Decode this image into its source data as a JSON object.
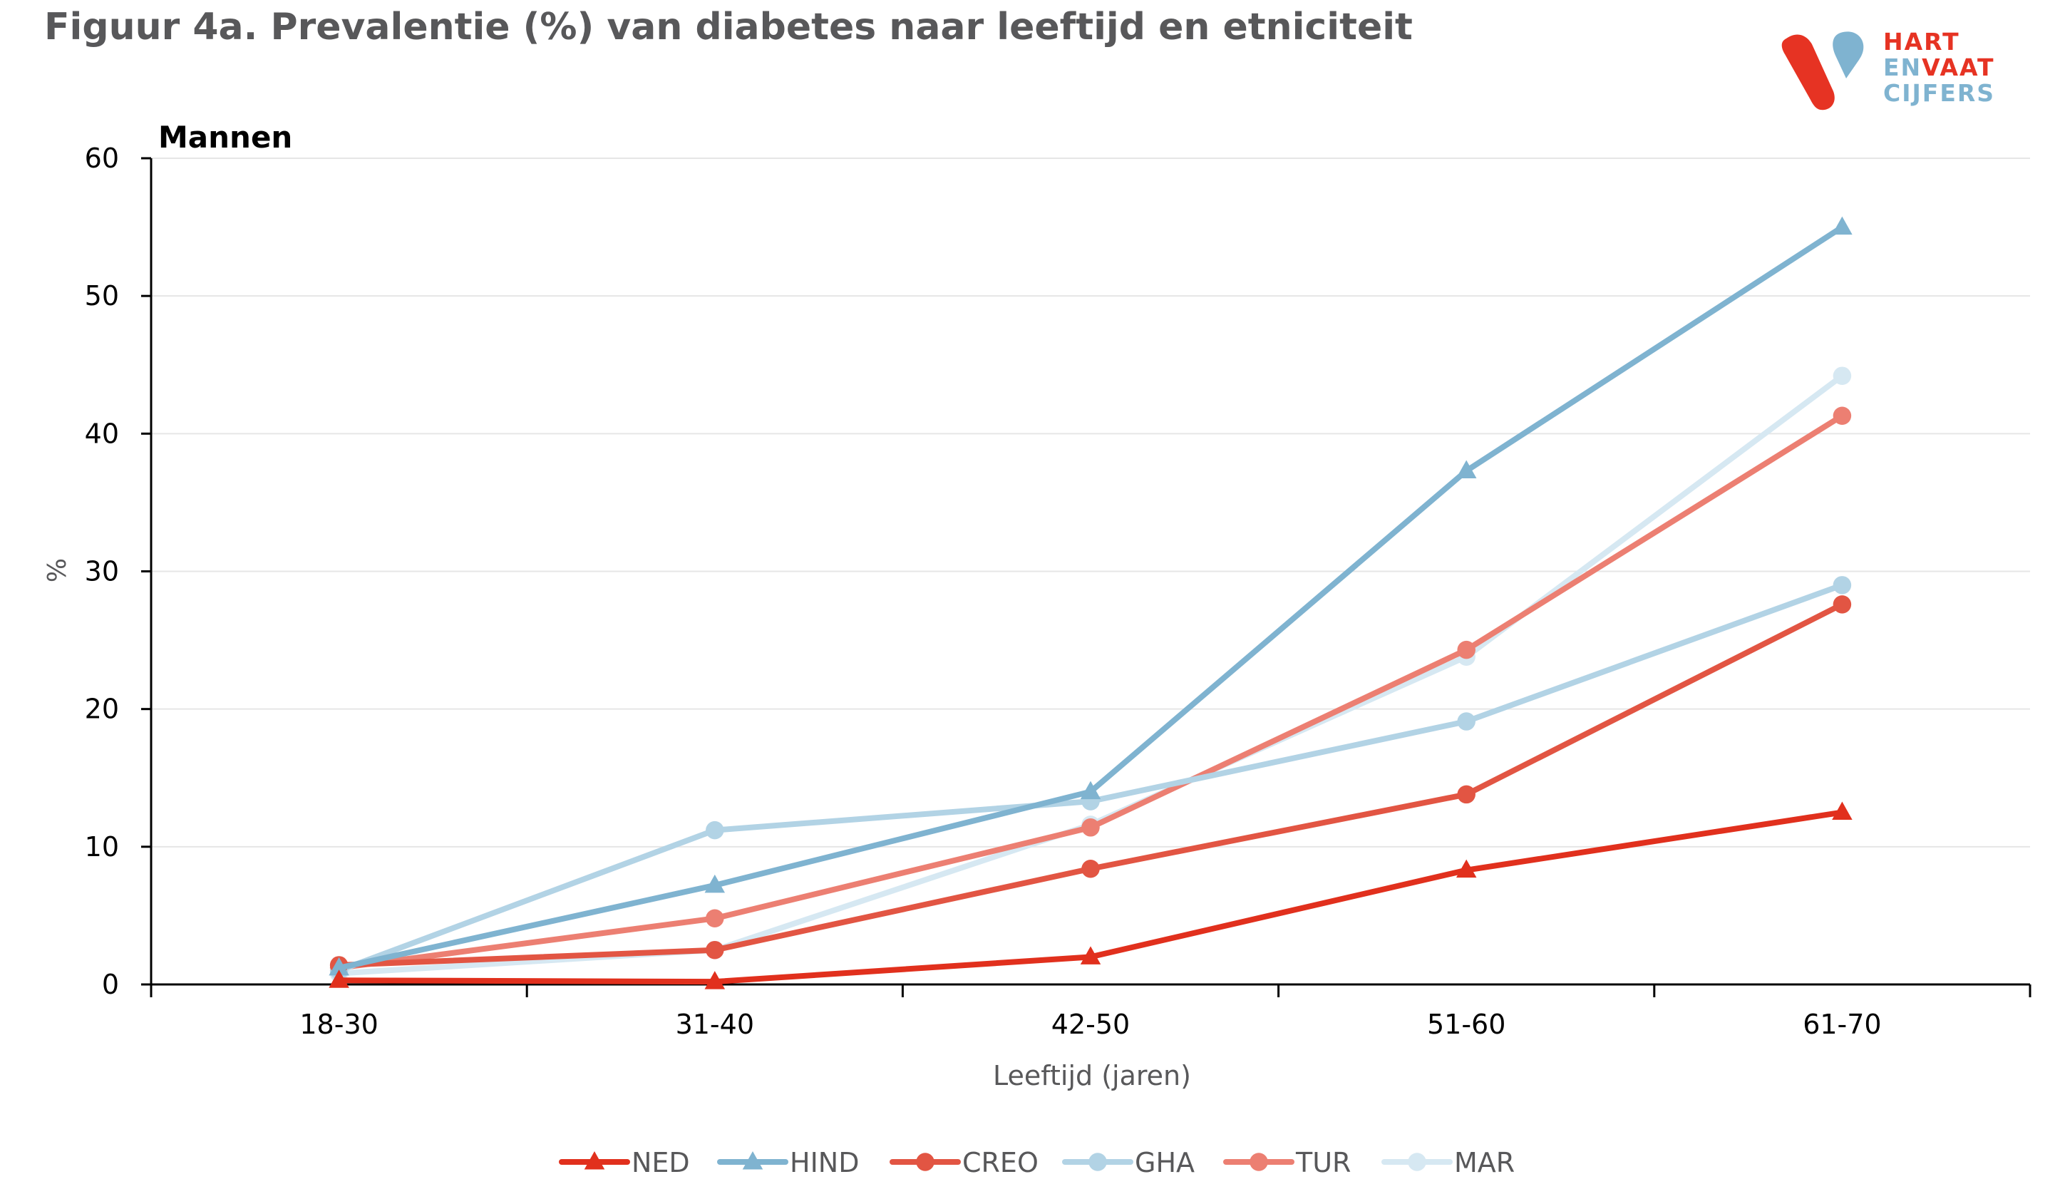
{
  "title": "Figuur 4a. Prevalentie (%) van diabetes naar leeftijd en etniciteit",
  "logo": {
    "line1": "HART",
    "line2a": "EN",
    "line2b": "VAAT",
    "line3": "CIJFERS",
    "colors": {
      "red": "#e63323",
      "blue": "#7fb3d0"
    }
  },
  "chart_data": {
    "type": "line",
    "subtitle": "Mannen",
    "xlabel": "Leeftijd (jaren)",
    "ylabel": "%",
    "ylim": [
      0,
      60
    ],
    "yticks": [
      0,
      10,
      20,
      30,
      40,
      50,
      60
    ],
    "grid": true,
    "legend_position": "bottom",
    "categories": [
      "18-30",
      "31-40",
      "42-50",
      "51-60",
      "61-70"
    ],
    "series": [
      {
        "name": "MAR",
        "values": [
          0.8,
          2.5,
          11.6,
          23.8,
          44.2
        ],
        "color": "#d6e8f2",
        "marker": "circle"
      },
      {
        "name": "TUR",
        "values": [
          1.2,
          4.8,
          11.4,
          24.3,
          41.3
        ],
        "color": "#ec7f72",
        "marker": "circle"
      },
      {
        "name": "GHA",
        "values": [
          1.0,
          11.2,
          13.3,
          19.1,
          29.0
        ],
        "color": "#b2d3e5",
        "marker": "circle"
      },
      {
        "name": "CREO",
        "values": [
          1.4,
          2.5,
          8.4,
          13.8,
          27.6
        ],
        "color": "#e25543",
        "marker": "circle"
      },
      {
        "name": "HIND",
        "values": [
          1.2,
          7.2,
          14.0,
          37.3,
          55.0
        ],
        "color": "#7fb3d0",
        "marker": "triangle"
      },
      {
        "name": "NED",
        "values": [
          0.3,
          0.2,
          2.0,
          8.3,
          12.5
        ],
        "color": "#e1301d",
        "marker": "triangle"
      }
    ],
    "legend_order": [
      "NED",
      "HIND",
      "CREO",
      "GHA",
      "TUR",
      "MAR"
    ]
  }
}
